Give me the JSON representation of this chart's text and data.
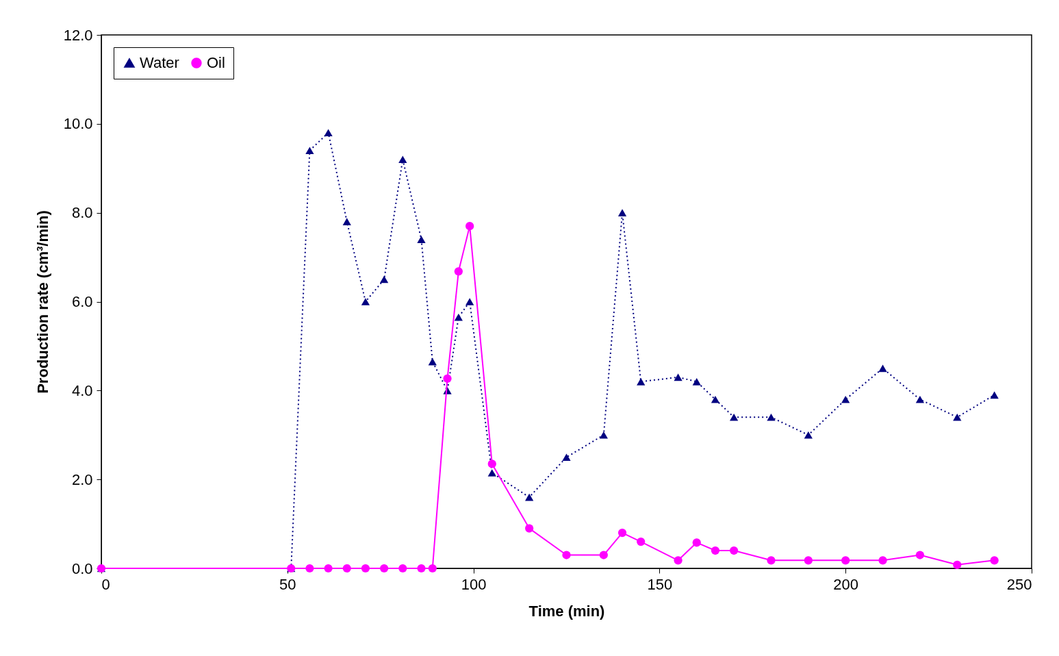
{
  "chart_data": {
    "type": "line",
    "xlabel": "Time (min)",
    "ylabel": "Production rate (cm³/min)",
    "xlim": [
      0,
      250
    ],
    "xticks": [
      0,
      50,
      100,
      150,
      200,
      250
    ],
    "ylim": [
      0,
      12
    ],
    "yticks": [
      {
        "value": 0,
        "label": "0.0"
      },
      {
        "value": 2,
        "label": "2.0"
      },
      {
        "value": 4,
        "label": "4.0"
      },
      {
        "value": 6,
        "label": "6.0"
      },
      {
        "value": 8,
        "label": "8.0"
      },
      {
        "value": 10,
        "label": "10.0"
      },
      {
        "value": 12,
        "label": "12.0"
      }
    ],
    "grid": false,
    "legend": "top left",
    "x": [
      0,
      51,
      56,
      61,
      66,
      71,
      76,
      81,
      86,
      89,
      93,
      96,
      99,
      105,
      115,
      125,
      135,
      140,
      145,
      155,
      160,
      165,
      170,
      180,
      190,
      200,
      210,
      220,
      230,
      240
    ],
    "series": [
      {
        "name": "Water",
        "color": "#000080",
        "marker": "triangle",
        "line_style": "dotted",
        "values": [
          0,
          0,
          9.4,
          9.8,
          7.8,
          6.0,
          6.5,
          9.2,
          7.4,
          4.65,
          4.0,
          5.65,
          6.0,
          2.15,
          1.6,
          2.5,
          3.0,
          8.0,
          4.2,
          4.3,
          4.2,
          3.8,
          3.4,
          3.4,
          3.0,
          3.8,
          4.5,
          3.8,
          3.4,
          3.9
        ]
      },
      {
        "name": "Oil",
        "color": "#ff00ff",
        "marker": "circle",
        "line_style": "solid",
        "values": [
          0,
          0,
          0,
          0,
          0,
          0,
          0,
          0,
          0,
          0,
          4.27,
          6.68,
          7.7,
          2.35,
          0.9,
          0.3,
          0.3,
          0.8,
          0.6,
          0.18,
          0.58,
          0.4,
          0.4,
          0.18,
          0.18,
          0.18,
          0.18,
          0.3,
          0.08,
          0.18
        ]
      }
    ]
  }
}
